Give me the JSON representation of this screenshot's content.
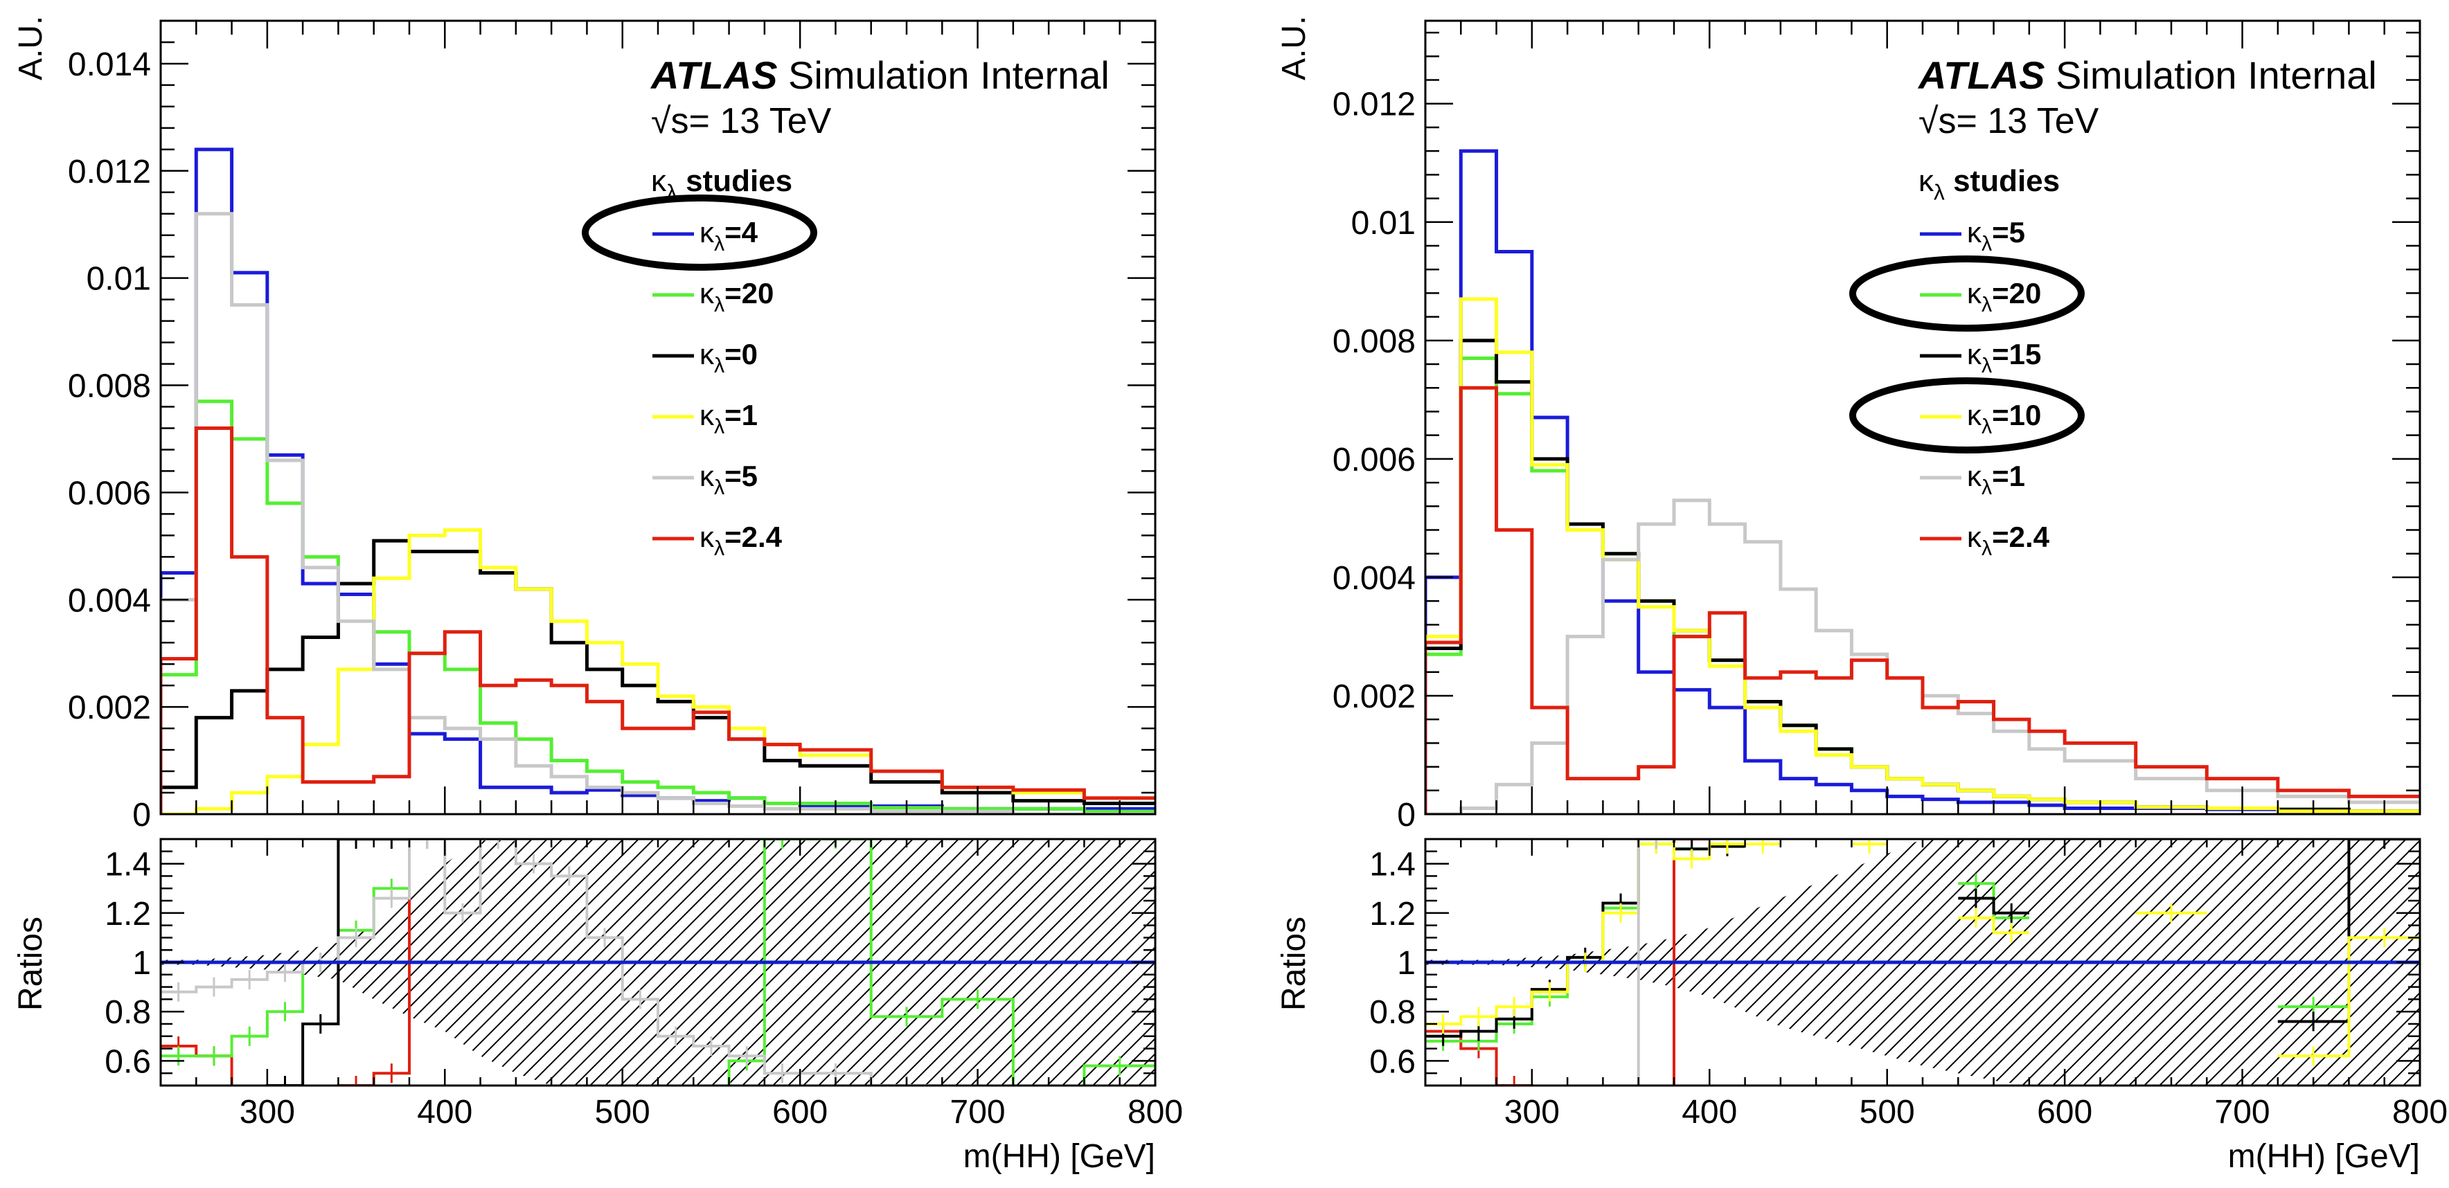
{
  "colors": {
    "blue": "#1b1bd9",
    "green": "#55ee33",
    "black": "#000000",
    "yellow": "#ffff22",
    "gray": "#c8c8c8",
    "red": "#e02010",
    "ref_line": "#1020c8",
    "hatch": "#000000"
  },
  "chart_data": [
    {
      "type": "line",
      "step": true,
      "header": {
        "atlas": "ATLAS",
        "label": "Simulation Internal",
        "energy": "√s= 13 TeV"
      },
      "legend_title": "κ_λ studies",
      "legend_placement": "top-right",
      "ylabel": "A.U.",
      "xlabel": "m(HH) [GeV]",
      "ratio_ylabel": "Ratios",
      "xlim": [
        240,
        800
      ],
      "ylim": [
        0,
        0.0148
      ],
      "yticks": [
        "0",
        "0.002",
        "0.004",
        "0.006",
        "0.008",
        "0.01",
        "0.012",
        "0.014"
      ],
      "xticks": [
        "300",
        "400",
        "500",
        "600",
        "700",
        "800"
      ],
      "ratio_ylim": [
        0.5,
        1.5
      ],
      "ratio_yticks": [
        "0.6",
        "0.8",
        "1",
        "1.2",
        "1.4"
      ],
      "circled_legend": [
        0
      ],
      "edges": [
        240,
        260,
        280,
        300,
        320,
        340,
        360,
        380,
        400,
        420,
        440,
        460,
        480,
        500,
        520,
        540,
        560,
        580,
        600,
        640,
        680,
        720,
        760,
        800
      ],
      "series": [
        {
          "name": "κ_λ=4",
          "color": "blue",
          "values": [
            0.0045,
            0.0124,
            0.0101,
            0.0067,
            0.0043,
            0.0041,
            0.0028,
            0.0015,
            0.0014,
            0.0005,
            0.0005,
            0.0004,
            0.00045,
            0.00035,
            0.0003,
            0.00025,
            0.0003,
            0.0002,
            0.00015,
            0.00015,
            0.0001,
            0.0001,
            0.0001
          ]
        },
        {
          "name": "κ_λ=20",
          "color": "green",
          "values": [
            0.0026,
            0.0077,
            0.007,
            0.0058,
            0.0048,
            0.0043,
            0.0034,
            0.003,
            0.0027,
            0.0017,
            0.0014,
            0.001,
            0.0008,
            0.0006,
            0.0005,
            0.0004,
            0.0003,
            0.0002,
            0.0002,
            0.00012,
            0.0001,
            0.0001,
            5e-05
          ]
        },
        {
          "name": "κ_λ=0",
          "color": "black",
          "values": [
            0.0005,
            0.0018,
            0.0023,
            0.0027,
            0.0033,
            0.0043,
            0.0051,
            0.0049,
            0.0049,
            0.0045,
            0.0042,
            0.0032,
            0.0027,
            0.0024,
            0.0021,
            0.0018,
            0.0014,
            0.001,
            0.0009,
            0.0006,
            0.0004,
            0.00025,
            0.0002
          ]
        },
        {
          "name": "κ_λ=1",
          "color": "yellow",
          "values": [
            0.0,
            0.0001,
            0.0004,
            0.0007,
            0.0013,
            0.0027,
            0.0044,
            0.0052,
            0.0053,
            0.0046,
            0.0042,
            0.0036,
            0.0032,
            0.0028,
            0.0022,
            0.002,
            0.0016,
            0.0013,
            0.0011,
            0.0008,
            0.0005,
            0.0004,
            0.0003
          ]
        },
        {
          "name": "κ_λ=5",
          "color": "gray",
          "values": [
            0.004,
            0.0112,
            0.0095,
            0.0066,
            0.0046,
            0.0036,
            0.0027,
            0.0018,
            0.0016,
            0.0014,
            0.0009,
            0.0007,
            0.0005,
            0.0004,
            0.0003,
            0.0002,
            0.00015,
            0.0001,
            0.0001,
            5e-05,
            5e-05,
            0.0,
            0.0
          ]
        },
        {
          "name": "κ_λ=2.4",
          "color": "red",
          "values": [
            0.0029,
            0.0072,
            0.0048,
            0.0018,
            0.0006,
            0.0006,
            0.0007,
            0.003,
            0.0034,
            0.0024,
            0.0025,
            0.0024,
            0.0021,
            0.0016,
            0.0016,
            0.0019,
            0.0014,
            0.0013,
            0.0012,
            0.0008,
            0.0005,
            0.00045,
            0.0003
          ]
        }
      ],
      "ratios": [
        {
          "color": "red",
          "values": [
            0.66,
            0.62,
            0.45,
            0.4,
            0.4,
            0.5,
            0.55,
            1.5,
            null,
            null,
            null,
            null,
            null,
            null,
            null,
            null,
            null,
            null,
            null,
            null,
            null,
            null,
            null
          ]
        },
        {
          "color": "green",
          "values": [
            0.62,
            0.62,
            0.7,
            0.8,
            1.0,
            1.13,
            1.3,
            1.5,
            null,
            null,
            null,
            null,
            null,
            null,
            null,
            0.45,
            0.6,
            1.5,
            1.5,
            0.78,
            0.85,
            0.4,
            0.58
          ]
        },
        {
          "color": "black",
          "values": [
            0.4,
            0.4,
            0.45,
            0.5,
            0.75,
            1.5,
            1.5,
            null,
            null,
            null,
            null,
            null,
            null,
            null,
            null,
            null,
            null,
            null,
            null,
            null,
            null,
            null,
            null
          ]
        },
        {
          "color": "gray",
          "values": [
            0.88,
            0.9,
            0.93,
            0.96,
            1.0,
            1.1,
            1.26,
            1.5,
            1.2,
            1.5,
            1.4,
            1.35,
            1.1,
            0.85,
            0.7,
            0.66,
            0.62,
            0.55,
            0.55,
            0.5,
            null,
            null,
            null
          ]
        }
      ],
      "hatch_band": {
        "x": [
          240,
          260,
          280,
          300,
          320,
          340,
          360,
          380,
          400,
          420,
          440,
          460,
          480,
          500,
          520,
          540,
          560,
          580,
          600,
          640,
          680,
          720,
          760,
          800
        ],
        "lo": [
          0.99,
          0.99,
          0.98,
          0.97,
          0.95,
          0.93,
          0.85,
          0.78,
          0.72,
          0.62,
          0.55,
          0.5,
          0.5,
          0.5,
          0.5,
          0.5,
          0.5,
          0.5,
          0.5,
          0.5,
          0.5,
          0.5,
          0.5,
          0.5
        ],
        "hi": [
          1.01,
          1.01,
          1.02,
          1.03,
          1.05,
          1.08,
          1.15,
          1.28,
          1.4,
          1.5,
          1.5,
          1.5,
          1.5,
          1.5,
          1.5,
          1.5,
          1.5,
          1.5,
          1.5,
          1.5,
          1.5,
          1.5,
          1.5,
          1.5
        ]
      }
    },
    {
      "type": "line",
      "step": true,
      "header": {
        "atlas": "ATLAS",
        "label": "Simulation Internal",
        "energy": "√s= 13 TeV"
      },
      "legend_title": "κ_λ studies",
      "legend_placement": "top-right",
      "ylabel": "A.U.",
      "xlabel": "m(HH) [GeV]",
      "ratio_ylabel": "Ratios",
      "xlim": [
        240,
        800
      ],
      "ylim": [
        0,
        0.0134
      ],
      "yticks": [
        "0",
        "0.002",
        "0.004",
        "0.006",
        "0.008",
        "0.01",
        "0.012"
      ],
      "xticks": [
        "300",
        "400",
        "500",
        "600",
        "700",
        "800"
      ],
      "ratio_ylim": [
        0.5,
        1.5
      ],
      "ratio_yticks": [
        "0.6",
        "0.8",
        "1",
        "1.2",
        "1.4"
      ],
      "circled_legend": [
        1,
        3
      ],
      "edges": [
        240,
        260,
        280,
        300,
        320,
        340,
        360,
        380,
        400,
        420,
        440,
        460,
        480,
        500,
        520,
        540,
        560,
        580,
        600,
        640,
        680,
        720,
        760,
        800
      ],
      "series": [
        {
          "name": "κ_λ=5",
          "color": "blue",
          "values": [
            0.004,
            0.0112,
            0.0095,
            0.0067,
            0.0048,
            0.0036,
            0.0024,
            0.0021,
            0.0018,
            0.0009,
            0.0006,
            0.0005,
            0.0004,
            0.0003,
            0.00025,
            0.0002,
            0.0002,
            0.00015,
            0.0001,
            0.0001,
            8e-05,
            5e-05,
            5e-05
          ]
        },
        {
          "name": "κ_λ=20",
          "color": "green",
          "values": [
            0.0027,
            0.0077,
            0.0071,
            0.0058,
            0.0048,
            0.0044,
            0.0036,
            0.003,
            0.0026,
            0.0019,
            0.0015,
            0.0011,
            0.0008,
            0.0006,
            0.0005,
            0.0004,
            0.0003,
            0.00025,
            0.0002,
            0.00012,
            0.0001,
            8e-05,
            5e-05
          ]
        },
        {
          "name": "κ_λ=15",
          "color": "black",
          "values": [
            0.0028,
            0.008,
            0.0073,
            0.006,
            0.0049,
            0.0044,
            0.0036,
            0.0031,
            0.0026,
            0.0019,
            0.0015,
            0.0011,
            0.0008,
            0.0006,
            0.0005,
            0.0004,
            0.0003,
            0.00025,
            0.0002,
            0.00012,
            0.0001,
            8e-05,
            5e-05
          ]
        },
        {
          "name": "κ_λ=10",
          "color": "yellow",
          "values": [
            0.003,
            0.0087,
            0.0078,
            0.0059,
            0.0048,
            0.0043,
            0.0035,
            0.0031,
            0.0025,
            0.0018,
            0.0014,
            0.001,
            0.0008,
            0.0006,
            0.0005,
            0.0004,
            0.0003,
            0.00025,
            0.0002,
            0.00012,
            0.0001,
            5e-05,
            5e-05
          ]
        },
        {
          "name": "κ_λ=1",
          "color": "gray",
          "values": [
            0.0,
            0.0001,
            0.0005,
            0.0012,
            0.003,
            0.0043,
            0.0049,
            0.0053,
            0.0049,
            0.0046,
            0.0038,
            0.0031,
            0.0027,
            0.0023,
            0.002,
            0.0017,
            0.0014,
            0.0011,
            0.0009,
            0.0006,
            0.0004,
            0.0003,
            0.0002
          ]
        },
        {
          "name": "κ_λ=2.4",
          "color": "red",
          "values": [
            0.0029,
            0.0072,
            0.0048,
            0.0018,
            0.0006,
            0.0006,
            0.0008,
            0.003,
            0.0034,
            0.0023,
            0.0024,
            0.0023,
            0.0026,
            0.0023,
            0.0018,
            0.0019,
            0.0016,
            0.0014,
            0.0012,
            0.0008,
            0.0006,
            0.0004,
            0.0003
          ]
        }
      ],
      "ratios": [
        {
          "color": "red",
          "values": [
            0.72,
            0.65,
            0.5,
            0.45,
            0.45,
            0.4,
            0.45,
            1.5,
            null,
            null,
            null,
            null,
            null,
            null,
            null,
            null,
            null,
            null,
            null,
            null,
            null,
            null,
            null
          ]
        },
        {
          "color": "green",
          "values": [
            0.68,
            0.68,
            0.75,
            0.86,
            1.0,
            1.22,
            1.48,
            1.46,
            1.48,
            null,
            null,
            null,
            null,
            null,
            null,
            1.32,
            1.18,
            null,
            null,
            null,
            null,
            0.82,
            null
          ]
        },
        {
          "color": "black",
          "values": [
            0.7,
            0.72,
            0.77,
            0.89,
            1.02,
            1.24,
            1.5,
            1.46,
            1.47,
            null,
            null,
            null,
            null,
            null,
            null,
            1.26,
            1.2,
            null,
            null,
            null,
            null,
            0.76,
            1.5
          ]
        },
        {
          "color": "yellow",
          "values": [
            0.75,
            0.78,
            0.82,
            0.88,
            1.0,
            1.2,
            1.48,
            1.42,
            1.48,
            1.48,
            null,
            null,
            1.48,
            null,
            null,
            1.18,
            1.12,
            null,
            null,
            1.2,
            null,
            0.62,
            1.1
          ]
        },
        {
          "color": "gray",
          "values": [
            null,
            null,
            null,
            null,
            null,
            0.45,
            1.5,
            null,
            null,
            null,
            null,
            null,
            null,
            null,
            null,
            null,
            null,
            null,
            null,
            null,
            null,
            null,
            null
          ]
        }
      ],
      "hatch_band": {
        "x": [
          240,
          260,
          280,
          300,
          320,
          340,
          360,
          380,
          400,
          420,
          440,
          460,
          480,
          500,
          520,
          540,
          560,
          580,
          600,
          640,
          680,
          720,
          760,
          800
        ],
        "lo": [
          0.99,
          0.99,
          0.99,
          0.98,
          0.97,
          0.95,
          0.93,
          0.9,
          0.86,
          0.8,
          0.74,
          0.7,
          0.66,
          0.62,
          0.58,
          0.55,
          0.52,
          0.5,
          0.5,
          0.5,
          0.5,
          0.5,
          0.5,
          0.5
        ],
        "hi": [
          1.01,
          1.01,
          1.01,
          1.02,
          1.03,
          1.05,
          1.07,
          1.1,
          1.14,
          1.2,
          1.26,
          1.32,
          1.38,
          1.44,
          1.5,
          1.5,
          1.5,
          1.5,
          1.5,
          1.5,
          1.5,
          1.5,
          1.5,
          1.5
        ]
      }
    }
  ]
}
